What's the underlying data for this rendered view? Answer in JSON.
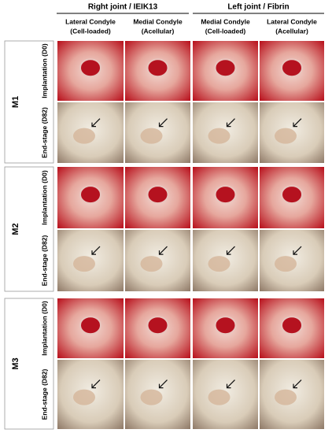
{
  "header": {
    "groups": [
      "Right joint / IEIK13",
      "Left joint / Fibrin"
    ],
    "columns": [
      {
        "line1": "Lateral Condyle",
        "line2": "(Cell-loaded)"
      },
      {
        "line1": "Medial Condyle",
        "line2": "(Acellular)"
      },
      {
        "line1": "Medial Condyle",
        "line2": "(Cell-loaded)"
      },
      {
        "line1": "Lateral Condyle",
        "line2": "(Acellular)"
      }
    ]
  },
  "rows": [
    {
      "label": "M1",
      "panels": [
        "Implantation (D0)",
        "End-stage (D82)"
      ]
    },
    {
      "label": "M2",
      "panels": [
        "Implantation (D0)",
        "End-stage (D82)"
      ]
    },
    {
      "label": "M3",
      "panels": [
        "Implantation (D0)",
        "End-stage (D82)"
      ]
    }
  ]
}
